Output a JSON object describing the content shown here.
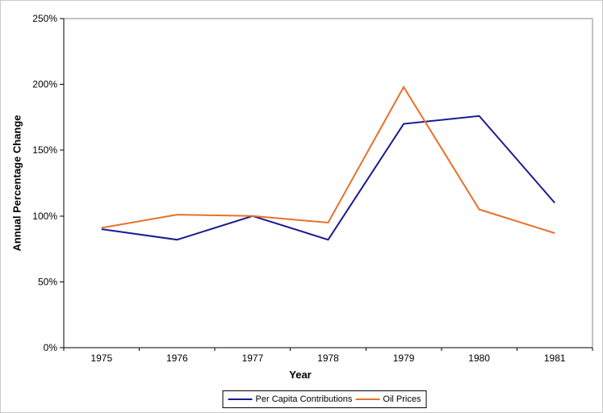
{
  "chart_data": {
    "type": "line",
    "xlabel": "Year",
    "ylabel": "Annual Percentage Change",
    "x": [
      "1975",
      "1976",
      "1977",
      "1978",
      "1979",
      "1980",
      "1981"
    ],
    "y_tick_values": [
      0,
      50,
      100,
      150,
      200,
      250
    ],
    "y_tick_labels": [
      "0%",
      "50%",
      "100%",
      "150%",
      "200%",
      "250%"
    ],
    "ylim": [
      0,
      250
    ],
    "grid": false,
    "legend_position": "bottom-center",
    "axis_color": "#000000",
    "plot_border_color": "#848484",
    "series": [
      {
        "name": "Per Capita Contributions",
        "color": "#1a1a8f",
        "values": [
          90,
          82,
          100,
          82,
          170,
          176,
          110
        ]
      },
      {
        "name": "Oil Prices",
        "color": "#e8702a",
        "values": [
          91,
          101,
          100,
          95,
          198,
          105,
          87
        ]
      }
    ]
  }
}
